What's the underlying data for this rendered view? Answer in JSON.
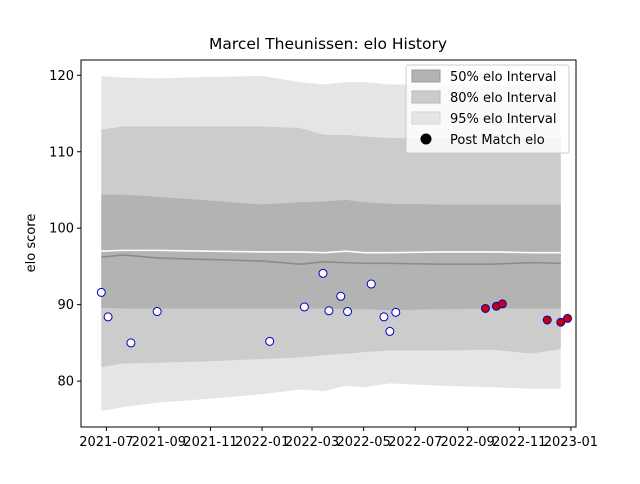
{
  "chart_data": {
    "type": "scatter",
    "title": "Marcel Theunissen: elo History",
    "xlabel": "",
    "ylabel": "elo score",
    "xlim": [
      "2021-06-01",
      "2023-01-07"
    ],
    "ylim": [
      74,
      122
    ],
    "y_ticks": [
      80,
      90,
      100,
      110,
      120
    ],
    "x_ticks": [
      {
        "date": "2021-07-01",
        "label": "2021-07"
      },
      {
        "date": "2021-09-01",
        "label": "2021-09"
      },
      {
        "date": "2021-11-01",
        "label": "2021-11"
      },
      {
        "date": "2022-01-01",
        "label": "2022-01"
      },
      {
        "date": "2022-03-01",
        "label": "2022-03"
      },
      {
        "date": "2022-05-01",
        "label": "2022-05"
      },
      {
        "date": "2022-07-01",
        "label": "2022-07"
      },
      {
        "date": "2022-09-01",
        "label": "2022-09"
      },
      {
        "date": "2022-11-01",
        "label": "2022-11"
      },
      {
        "date": "2023-01-01",
        "label": "2023-01"
      }
    ],
    "legend_position": "top-right",
    "legend": [
      {
        "key": "band50",
        "label": "50% elo Interval"
      },
      {
        "key": "band80",
        "label": "80% elo Interval"
      },
      {
        "key": "band95",
        "label": "95% elo Interval"
      },
      {
        "key": "points",
        "label": "Post Match elo"
      }
    ],
    "bands": {
      "dates": [
        "2021-06-25",
        "2021-07-20",
        "2021-09-01",
        "2021-11-01",
        "2022-01-01",
        "2022-02-15",
        "2022-03-15",
        "2022-04-10",
        "2022-05-01",
        "2022-06-01",
        "2022-08-01",
        "2022-10-01",
        "2022-11-15",
        "2022-12-20"
      ],
      "median": [
        96.2,
        96.5,
        96.1,
        95.9,
        95.7,
        95.3,
        95.6,
        95.5,
        95.4,
        95.4,
        95.3,
        95.3,
        95.5,
        95.4
      ],
      "mean": [
        97.0,
        97.1,
        97.1,
        97.0,
        96.9,
        96.9,
        96.8,
        97.0,
        96.8,
        96.8,
        96.9,
        96.9,
        96.8,
        96.8
      ],
      "p50_low": [
        89.6,
        89.5,
        89.5,
        89.5,
        89.5,
        89.5,
        89.5,
        89.4,
        89.4,
        89.3,
        89.4,
        89.5,
        89.5,
        89.5
      ],
      "p50_high": [
        104.4,
        104.4,
        104.1,
        103.6,
        103.1,
        103.4,
        103.5,
        103.7,
        103.4,
        103.2,
        103.1,
        103.1,
        103.1,
        103.1
      ],
      "p80_low": [
        81.8,
        82.3,
        82.4,
        82.6,
        82.9,
        83.1,
        83.4,
        83.6,
        83.8,
        84.0,
        84.0,
        84.1,
        83.6,
        84.2
      ],
      "p80_high": [
        112.9,
        113.3,
        113.3,
        113.3,
        113.3,
        113.1,
        112.2,
        112.2,
        112.0,
        111.8,
        111.8,
        111.8,
        111.8,
        111.8
      ],
      "p95_low": [
        76.1,
        76.6,
        77.2,
        77.7,
        78.3,
        78.9,
        78.7,
        79.4,
        79.2,
        79.7,
        79.4,
        79.2,
        79.0,
        79.0
      ],
      "p95_high": [
        119.9,
        119.7,
        119.6,
        119.8,
        119.9,
        119.1,
        118.8,
        119.1,
        119.1,
        118.8,
        118.8,
        118.8,
        118.8,
        118.8
      ]
    },
    "points": [
      {
        "date": "2021-06-25",
        "elo": 91.6,
        "style": "white"
      },
      {
        "date": "2021-07-03",
        "elo": 88.4,
        "style": "white"
      },
      {
        "date": "2021-07-30",
        "elo": 85.0,
        "style": "white"
      },
      {
        "date": "2021-08-30",
        "elo": 89.1,
        "style": "white"
      },
      {
        "date": "2022-01-10",
        "elo": 85.2,
        "style": "white"
      },
      {
        "date": "2022-02-20",
        "elo": 89.7,
        "style": "white"
      },
      {
        "date": "2022-03-14",
        "elo": 94.1,
        "style": "white"
      },
      {
        "date": "2022-03-21",
        "elo": 89.2,
        "style": "white"
      },
      {
        "date": "2022-04-04",
        "elo": 91.1,
        "style": "white"
      },
      {
        "date": "2022-04-12",
        "elo": 89.1,
        "style": "white"
      },
      {
        "date": "2022-05-10",
        "elo": 92.7,
        "style": "white"
      },
      {
        "date": "2022-05-25",
        "elo": 88.4,
        "style": "white"
      },
      {
        "date": "2022-06-01",
        "elo": 86.5,
        "style": "white"
      },
      {
        "date": "2022-06-08",
        "elo": 89.0,
        "style": "white"
      },
      {
        "date": "2022-09-22",
        "elo": 89.5,
        "style": "red"
      },
      {
        "date": "2022-10-05",
        "elo": 89.8,
        "style": "red"
      },
      {
        "date": "2022-10-12",
        "elo": 90.1,
        "style": "red"
      },
      {
        "date": "2022-12-04",
        "elo": 88.0,
        "style": "red"
      },
      {
        "date": "2022-12-20",
        "elo": 87.7,
        "style": "red"
      },
      {
        "date": "2022-12-28",
        "elo": 88.2,
        "style": "red"
      }
    ]
  },
  "colors": {
    "band50": "#b3b3b3",
    "band80": "#cccccc",
    "band95": "#e5e5e5",
    "median": "#8c8c8c",
    "mean": "#ffffff",
    "marker_edge": "#0000cc",
    "marker_red": "#cc0000",
    "marker_white": "#ffffff"
  }
}
